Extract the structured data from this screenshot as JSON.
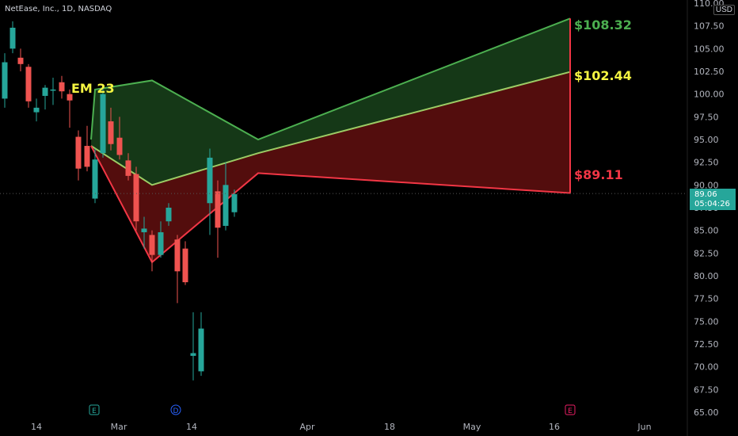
{
  "header": {
    "symbol": "NetEase, Inc., 1D, NASDAQ",
    "currency": "USD"
  },
  "price_tag": {
    "price": "89.06",
    "timer": "05:04:26"
  },
  "annotations": {
    "em": "EM 23",
    "upper": "$108.32",
    "mid": "$102.44",
    "lower": "$89.11"
  },
  "events": [
    "E",
    "D",
    "E"
  ],
  "colors": {
    "up": "#26a69a",
    "down": "#ef5350",
    "green": "#4caf50",
    "red": "#f23645",
    "mid": "#f5f542"
  },
  "chart_data": {
    "type": "candlestick",
    "y_axis": {
      "ticks": [
        "110.00",
        "107.50",
        "105.00",
        "102.50",
        "100.00",
        "97.50",
        "95.00",
        "92.50",
        "90.00",
        "87.50",
        "85.00",
        "82.50",
        "80.00",
        "77.50",
        "75.00",
        "72.50",
        "70.00",
        "67.50",
        "65.00"
      ],
      "ylim": [
        65,
        110
      ]
    },
    "x_axis": {
      "ticks": [
        "14",
        "Mar",
        "14",
        "Apr",
        "18",
        "May",
        "16",
        "Jun"
      ]
    },
    "candles": [
      {
        "o": 99.5,
        "h": 104.5,
        "l": 98.5,
        "c": 103.5
      },
      {
        "o": 105.0,
        "h": 108.0,
        "l": 104.5,
        "c": 107.3
      },
      {
        "o": 104.0,
        "h": 105.0,
        "l": 102.5,
        "c": 103.3
      },
      {
        "o": 103.0,
        "h": 103.3,
        "l": 98.5,
        "c": 99.2
      },
      {
        "o": 98.0,
        "h": 99.5,
        "l": 97.0,
        "c": 98.5
      },
      {
        "o": 99.8,
        "h": 101.0,
        "l": 98.3,
        "c": 100.7
      },
      {
        "o": 100.5,
        "h": 101.8,
        "l": 98.8,
        "c": 100.5
      },
      {
        "o": 101.3,
        "h": 102.0,
        "l": 99.5,
        "c": 100.3
      },
      {
        "o": 100.0,
        "h": 100.5,
        "l": 96.3,
        "c": 99.3
      },
      {
        "o": 95.3,
        "h": 96.0,
        "l": 90.5,
        "c": 91.8
      },
      {
        "o": 94.3,
        "h": 96.5,
        "l": 91.5,
        "c": 92.0
      },
      {
        "o": 88.5,
        "h": 94.0,
        "l": 88.0,
        "c": 92.8
      },
      {
        "o": 93.5,
        "h": 101.0,
        "l": 93.0,
        "c": 100.0
      },
      {
        "o": 97.0,
        "h": 98.5,
        "l": 93.8,
        "c": 94.5
      },
      {
        "o": 95.2,
        "h": 97.5,
        "l": 92.8,
        "c": 93.3
      },
      {
        "o": 92.7,
        "h": 93.5,
        "l": 90.5,
        "c": 91.0
      },
      {
        "o": 91.2,
        "h": 92.0,
        "l": 85.0,
        "c": 86.0
      },
      {
        "o": 84.8,
        "h": 86.5,
        "l": 83.0,
        "c": 85.2
      },
      {
        "o": 84.5,
        "h": 85.0,
        "l": 80.5,
        "c": 82.3
      },
      {
        "o": 82.3,
        "h": 86.0,
        "l": 82.0,
        "c": 84.8
      },
      {
        "o": 86.0,
        "h": 88.0,
        "l": 85.5,
        "c": 87.5
      },
      {
        "o": 84.0,
        "h": 84.5,
        "l": 77.0,
        "c": 80.5
      },
      {
        "o": 83.0,
        "h": 83.8,
        "l": 79.0,
        "c": 79.3
      },
      {
        "o": 71.2,
        "h": 76.0,
        "l": 68.5,
        "c": 71.5
      },
      {
        "o": 69.5,
        "h": 76.0,
        "l": 69.0,
        "c": 74.2
      },
      {
        "o": 88.0,
        "h": 94.0,
        "l": 84.5,
        "c": 93.0
      },
      {
        "o": 89.3,
        "h": 90.5,
        "l": 82.0,
        "c": 85.3
      },
      {
        "o": 85.5,
        "h": 92.5,
        "l": 85.0,
        "c": 90.0
      },
      {
        "o": 87.0,
        "h": 89.5,
        "l": 86.5,
        "c": 89.0
      }
    ],
    "expected_move": {
      "upper_band": [
        95.0,
        100.5,
        101.5,
        95.0,
        108.32
      ],
      "mid_band": [
        94.3,
        90.0,
        93.5,
        102.44
      ],
      "lower_band": [
        94.3,
        81.5,
        91.3,
        89.11
      ],
      "upper_target": 108.32,
      "mid_target": 102.44,
      "lower_target": 89.11,
      "label": "EM 23"
    },
    "last_price": 89.06,
    "grid": false
  }
}
